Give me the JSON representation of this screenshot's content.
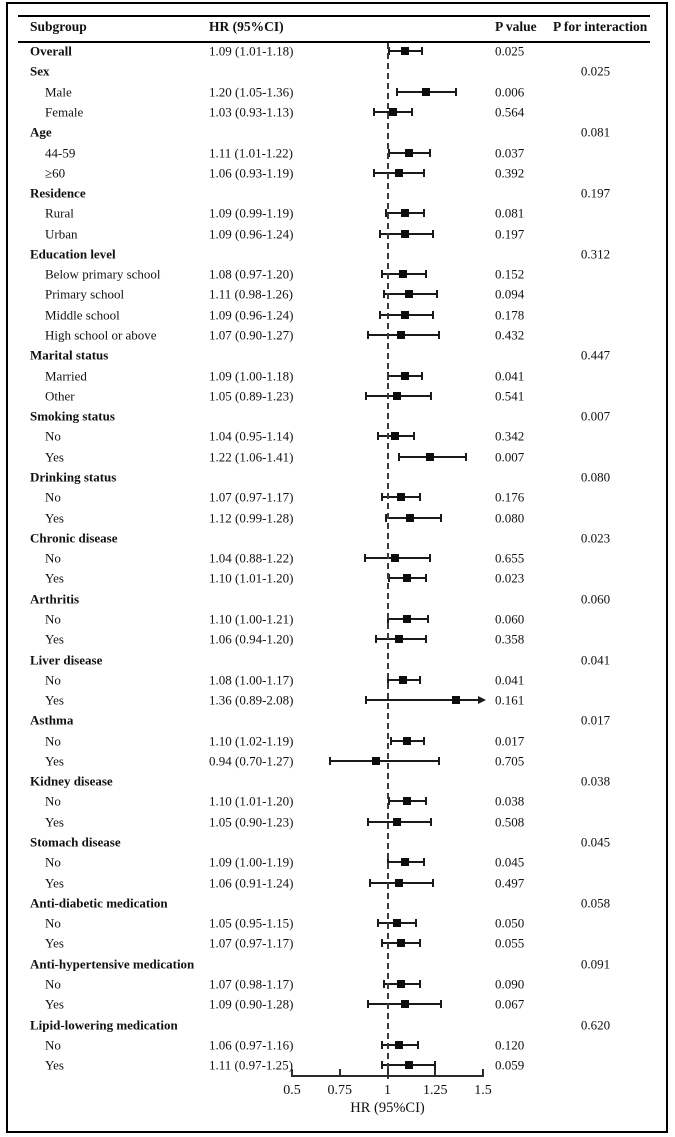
{
  "figure": {
    "columns": {
      "subgroup": "Subgroup",
      "hr": "HR (95%CI)",
      "p": "P value",
      "p_interaction": "P for interaction"
    },
    "colors": {
      "text": "#111111",
      "marker": "#0d0d0d",
      "line": "#1a1a1a",
      "background": "#ffffff"
    }
  },
  "chart_data": {
    "type": "forest",
    "xlabel": "HR (95%CI)",
    "xlim": [
      0.5,
      1.5
    ],
    "reference_line": 1.0,
    "xticks": [
      0.5,
      0.75,
      1,
      1.25,
      1.5
    ],
    "xtick_labels": [
      "0.5",
      "0.75",
      "1",
      "1.25",
      "1.5"
    ],
    "rows": [
      {
        "label": "Overall",
        "level": "group",
        "hr_text": "1.09 (1.01-1.18)",
        "est": 1.09,
        "lo": 1.01,
        "hi": 1.18,
        "p": "0.025",
        "p_interaction": ""
      },
      {
        "label": "Sex",
        "level": "group",
        "p_interaction": "0.025"
      },
      {
        "label": "Male",
        "level": "item",
        "hr_text": "1.20 (1.05-1.36)",
        "est": 1.2,
        "lo": 1.05,
        "hi": 1.36,
        "p": "0.006",
        "p_interaction": ""
      },
      {
        "label": "Female",
        "level": "item",
        "hr_text": "1.03 (0.93-1.13)",
        "est": 1.03,
        "lo": 0.93,
        "hi": 1.13,
        "p": "0.564",
        "p_interaction": ""
      },
      {
        "label": "Age",
        "level": "group",
        "p_interaction": "0.081"
      },
      {
        "label": "44-59",
        "level": "item",
        "hr_text": "1.11 (1.01-1.22)",
        "est": 1.11,
        "lo": 1.01,
        "hi": 1.22,
        "p": "0.037",
        "p_interaction": ""
      },
      {
        "label": "≥60",
        "level": "item",
        "hr_text": "1.06 (0.93-1.19)",
        "est": 1.06,
        "lo": 0.93,
        "hi": 1.19,
        "p": "0.392",
        "p_interaction": ""
      },
      {
        "label": "Residence",
        "level": "group",
        "p_interaction": "0.197"
      },
      {
        "label": "Rural",
        "level": "item",
        "hr_text": "1.09 (0.99-1.19)",
        "est": 1.09,
        "lo": 0.99,
        "hi": 1.19,
        "p": "0.081",
        "p_interaction": ""
      },
      {
        "label": "Urban",
        "level": "item",
        "hr_text": "1.09 (0.96-1.24)",
        "est": 1.09,
        "lo": 0.96,
        "hi": 1.24,
        "p": "0.197",
        "p_interaction": ""
      },
      {
        "label": "Education level",
        "level": "group",
        "p_interaction": "0.312"
      },
      {
        "label": "Below primary school",
        "level": "item",
        "hr_text": "1.08 (0.97-1.20)",
        "est": 1.08,
        "lo": 0.97,
        "hi": 1.2,
        "p": "0.152",
        "p_interaction": ""
      },
      {
        "label": "Primary school",
        "level": "item",
        "hr_text": "1.11 (0.98-1.26)",
        "est": 1.11,
        "lo": 0.98,
        "hi": 1.26,
        "p": "0.094",
        "p_interaction": ""
      },
      {
        "label": "Middle school",
        "level": "item",
        "hr_text": "1.09 (0.96-1.24)",
        "est": 1.09,
        "lo": 0.96,
        "hi": 1.24,
        "p": "0.178",
        "p_interaction": ""
      },
      {
        "label": "High school or above",
        "level": "item",
        "hr_text": "1.07 (0.90-1.27)",
        "est": 1.07,
        "lo": 0.9,
        "hi": 1.27,
        "p": "0.432",
        "p_interaction": ""
      },
      {
        "label": "Marital status",
        "level": "group",
        "p_interaction": "0.447"
      },
      {
        "label": "Married",
        "level": "item",
        "hr_text": "1.09 (1.00-1.18)",
        "est": 1.09,
        "lo": 1.0,
        "hi": 1.18,
        "p": "0.041",
        "p_interaction": ""
      },
      {
        "label": "Other",
        "level": "item",
        "hr_text": "1.05 (0.89-1.23)",
        "est": 1.05,
        "lo": 0.89,
        "hi": 1.23,
        "p": "0.541",
        "p_interaction": ""
      },
      {
        "label": "Smoking status",
        "level": "group",
        "p_interaction": "0.007"
      },
      {
        "label": "No",
        "level": "item",
        "hr_text": "1.04 (0.95-1.14)",
        "est": 1.04,
        "lo": 0.95,
        "hi": 1.14,
        "p": "0.342",
        "p_interaction": ""
      },
      {
        "label": "Yes",
        "level": "item",
        "hr_text": "1.22 (1.06-1.41)",
        "est": 1.22,
        "lo": 1.06,
        "hi": 1.41,
        "p": "0.007",
        "p_interaction": ""
      },
      {
        "label": "Drinking status",
        "level": "group",
        "p_interaction": "0.080"
      },
      {
        "label": "No",
        "level": "item",
        "hr_text": "1.07 (0.97-1.17)",
        "est": 1.07,
        "lo": 0.97,
        "hi": 1.17,
        "p": "0.176",
        "p_interaction": ""
      },
      {
        "label": "Yes",
        "level": "item",
        "hr_text": "1.12 (0.99-1.28)",
        "est": 1.12,
        "lo": 0.99,
        "hi": 1.28,
        "p": "0.080",
        "p_interaction": ""
      },
      {
        "label": "Chronic disease",
        "level": "group",
        "p_interaction": "0.023"
      },
      {
        "label": "No",
        "level": "item",
        "hr_text": "1.04 (0.88-1.22)",
        "est": 1.04,
        "lo": 0.88,
        "hi": 1.22,
        "p": "0.655",
        "p_interaction": ""
      },
      {
        "label": "Yes",
        "level": "item",
        "hr_text": "1.10 (1.01-1.20)",
        "est": 1.1,
        "lo": 1.01,
        "hi": 1.2,
        "p": "0.023",
        "p_interaction": ""
      },
      {
        "label": "Arthritis",
        "level": "group",
        "p_interaction": "0.060"
      },
      {
        "label": "No",
        "level": "item",
        "hr_text": "1.10 (1.00-1.21)",
        "est": 1.1,
        "lo": 1.0,
        "hi": 1.21,
        "p": "0.060",
        "p_interaction": ""
      },
      {
        "label": "Yes",
        "level": "item",
        "hr_text": "1.06 (0.94-1.20)",
        "est": 1.06,
        "lo": 0.94,
        "hi": 1.2,
        "p": "0.358",
        "p_interaction": ""
      },
      {
        "label": "Liver disease",
        "level": "group",
        "p_interaction": "0.041"
      },
      {
        "label": "No",
        "level": "item",
        "hr_text": "1.08 (1.00-1.17)",
        "est": 1.08,
        "lo": 1.0,
        "hi": 1.17,
        "p": "0.041",
        "p_interaction": ""
      },
      {
        "label": "Yes",
        "level": "item",
        "hr_text": "1.36 (0.89-2.08)",
        "est": 1.36,
        "lo": 0.89,
        "hi": 2.08,
        "p": "0.161",
        "p_interaction": "",
        "clipped_high": true
      },
      {
        "label": "Asthma",
        "level": "group",
        "p_interaction": "0.017"
      },
      {
        "label": "No",
        "level": "item",
        "hr_text": "1.10 (1.02-1.19)",
        "est": 1.1,
        "lo": 1.02,
        "hi": 1.19,
        "p": "0.017",
        "p_interaction": ""
      },
      {
        "label": "Yes",
        "level": "item",
        "hr_text": "0.94 (0.70-1.27)",
        "est": 0.94,
        "lo": 0.7,
        "hi": 1.27,
        "p": "0.705",
        "p_interaction": ""
      },
      {
        "label": "Kidney disease",
        "level": "group",
        "p_interaction": "0.038"
      },
      {
        "label": "No",
        "level": "item",
        "hr_text": "1.10 (1.01-1.20)",
        "est": 1.1,
        "lo": 1.01,
        "hi": 1.2,
        "p": "0.038",
        "p_interaction": ""
      },
      {
        "label": "Yes",
        "level": "item",
        "hr_text": "1.05 (0.90-1.23)",
        "est": 1.05,
        "lo": 0.9,
        "hi": 1.23,
        "p": "0.508",
        "p_interaction": ""
      },
      {
        "label": "Stomach disease",
        "level": "group",
        "p_interaction": "0.045"
      },
      {
        "label": "No",
        "level": "item",
        "hr_text": "1.09 (1.00-1.19)",
        "est": 1.09,
        "lo": 1.0,
        "hi": 1.19,
        "p": "0.045",
        "p_interaction": ""
      },
      {
        "label": "Yes",
        "level": "item",
        "hr_text": "1.06 (0.91-1.24)",
        "est": 1.06,
        "lo": 0.91,
        "hi": 1.24,
        "p": "0.497",
        "p_interaction": ""
      },
      {
        "label": "Anti-diabetic medication",
        "level": "group",
        "p_interaction": "0.058"
      },
      {
        "label": "No",
        "level": "item",
        "hr_text": "1.05 (0.95-1.15)",
        "est": 1.05,
        "lo": 0.95,
        "hi": 1.15,
        "p": "0.050",
        "p_interaction": ""
      },
      {
        "label": "Yes",
        "level": "item",
        "hr_text": "1.07 (0.97-1.17)",
        "est": 1.07,
        "lo": 0.97,
        "hi": 1.17,
        "p": "0.055",
        "p_interaction": ""
      },
      {
        "label": "Anti-hypertensive medication",
        "level": "group",
        "p_interaction": "0.091"
      },
      {
        "label": "No",
        "level": "item",
        "hr_text": "1.07 (0.98-1.17)",
        "est": 1.07,
        "lo": 0.98,
        "hi": 1.17,
        "p": "0.090",
        "p_interaction": ""
      },
      {
        "label": "Yes",
        "level": "item",
        "hr_text": "1.09 (0.90-1.28)",
        "est": 1.09,
        "lo": 0.9,
        "hi": 1.28,
        "p": "0.067",
        "p_interaction": ""
      },
      {
        "label": "Lipid-lowering medication",
        "level": "group",
        "p_interaction": "0.620"
      },
      {
        "label": "No",
        "level": "item",
        "hr_text": "1.06 (0.97-1.16)",
        "est": 1.06,
        "lo": 0.97,
        "hi": 1.16,
        "p": "0.120",
        "p_interaction": ""
      },
      {
        "label": "Yes",
        "level": "item",
        "hr_text": "1.11 (0.97-1.25)",
        "est": 1.11,
        "lo": 0.97,
        "hi": 1.25,
        "p": "0.059",
        "p_interaction": ""
      }
    ]
  }
}
